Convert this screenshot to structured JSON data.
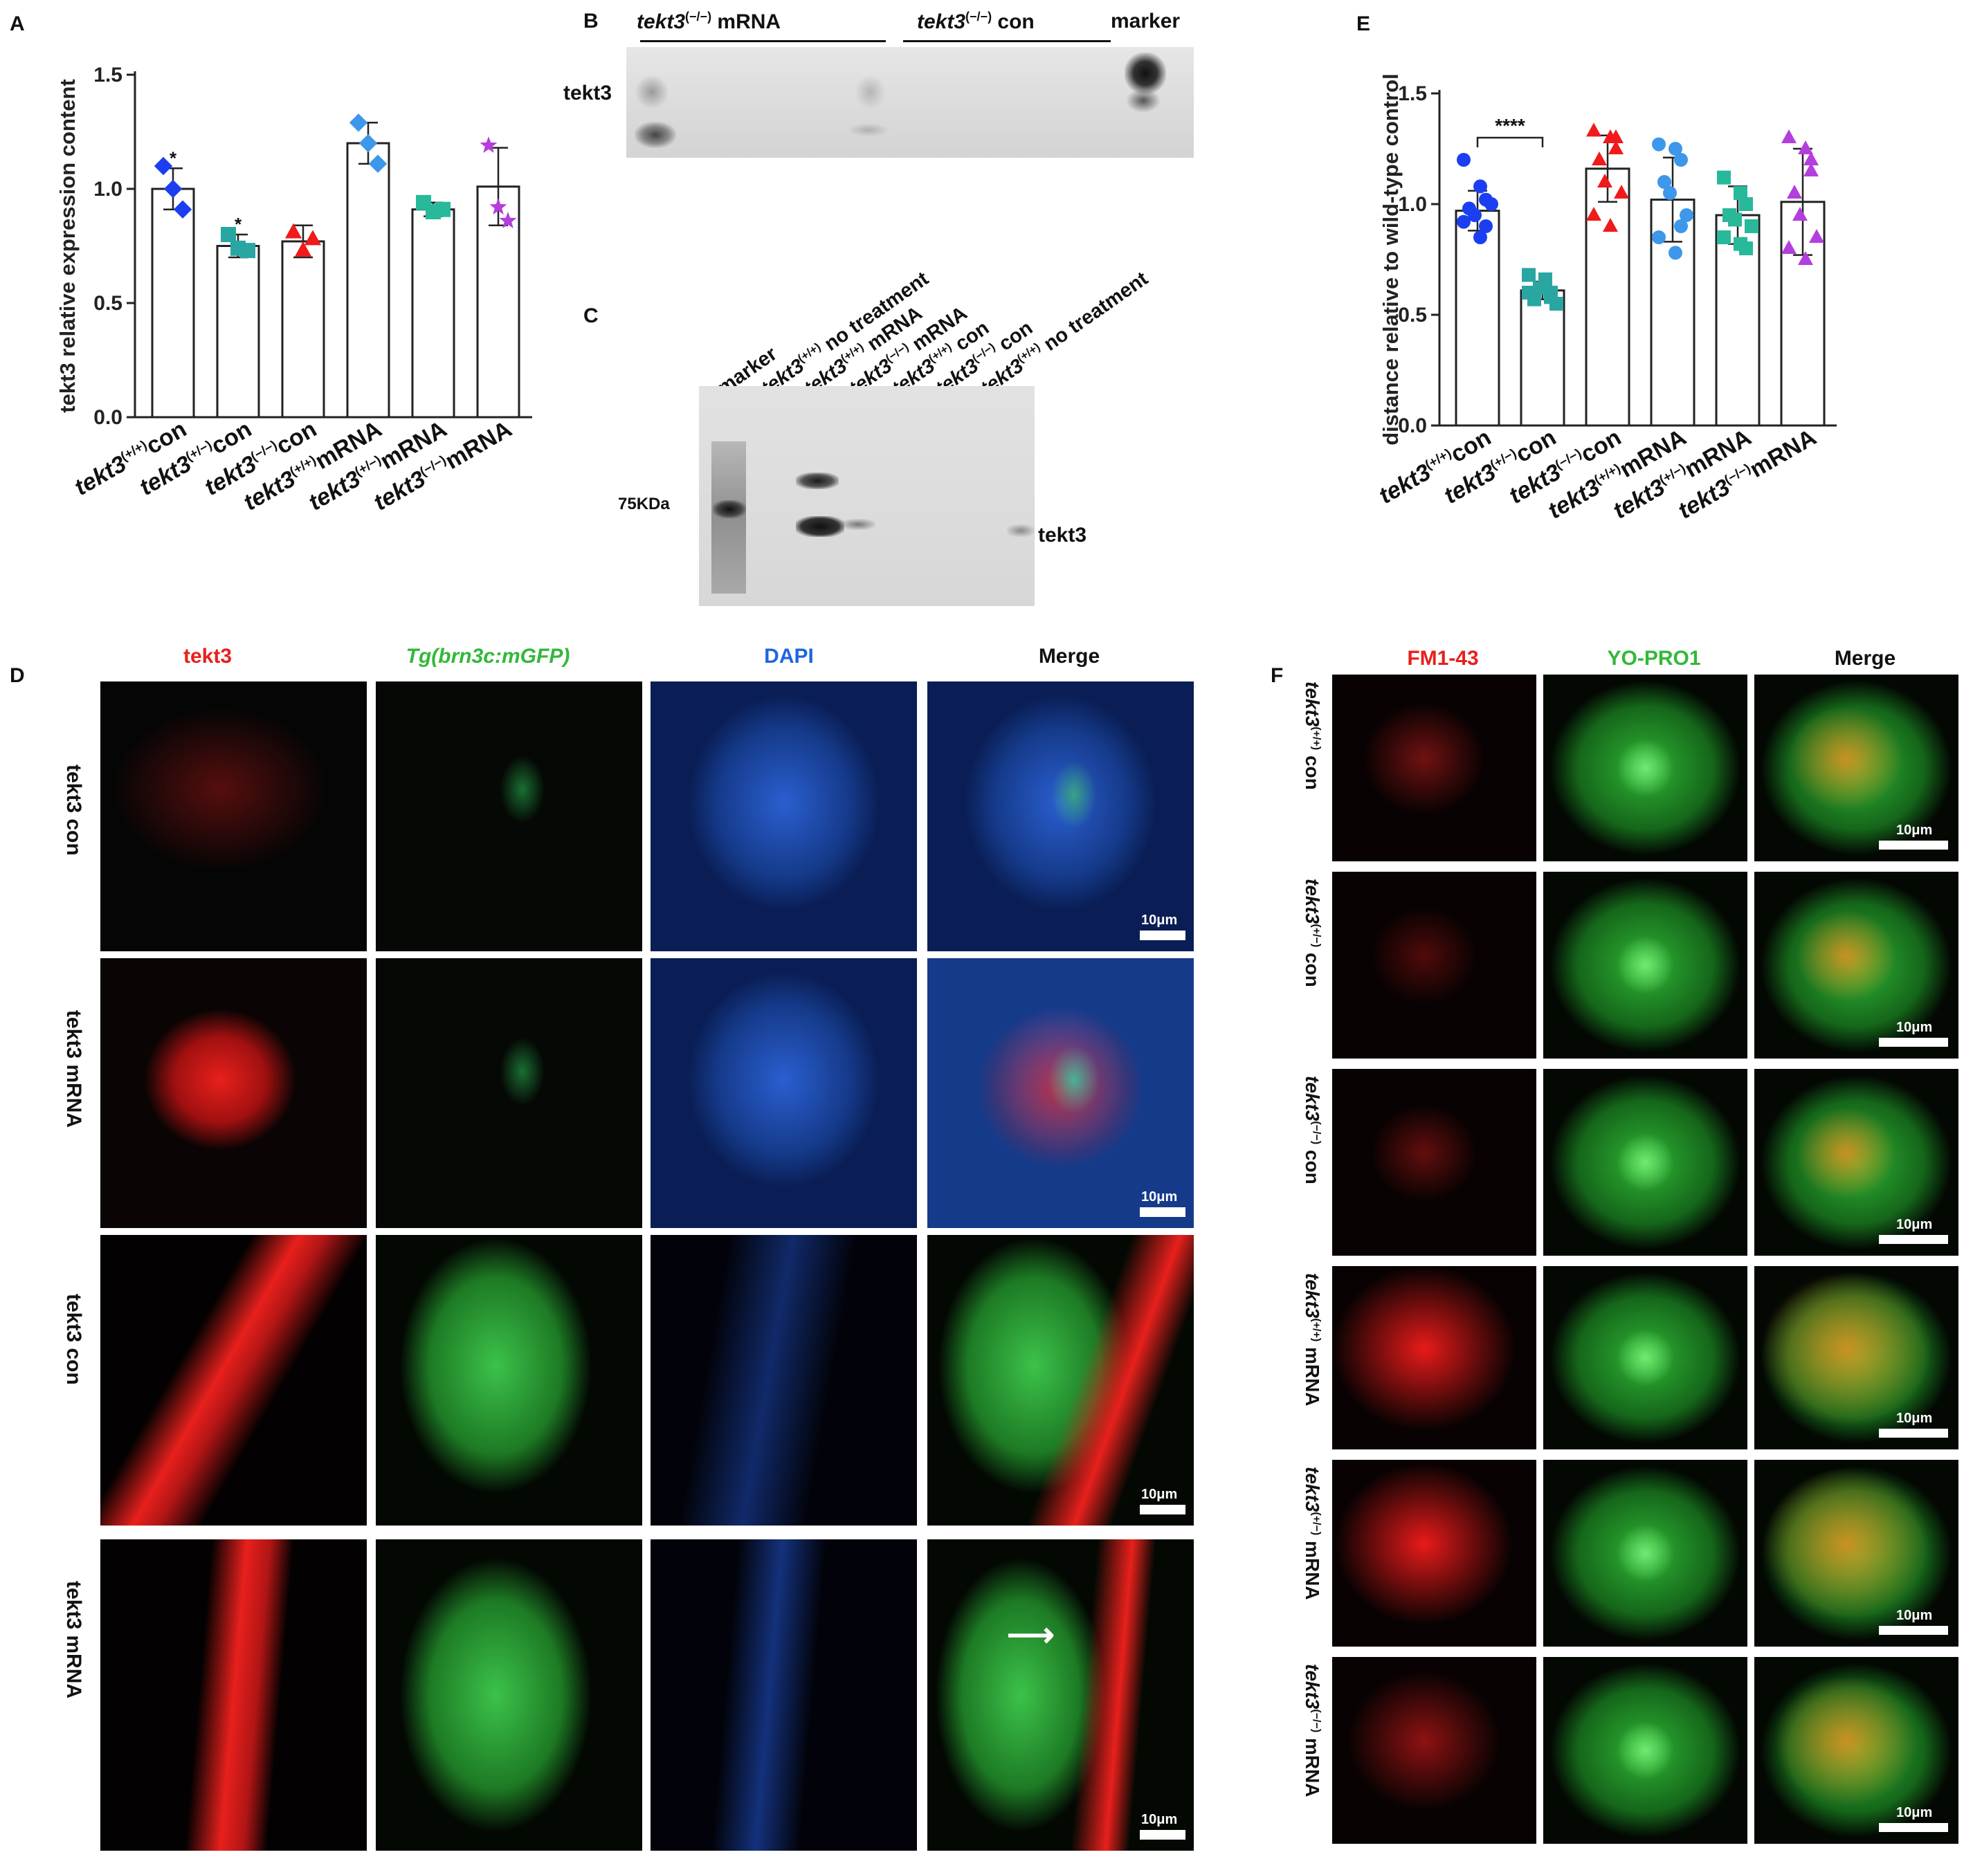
{
  "panel_letters": {
    "a": "A",
    "b": "B",
    "c": "C",
    "d": "D",
    "e": "E",
    "f": "F"
  },
  "chart_data": [
    {
      "type": "bar",
      "panel": "A",
      "ylabel": "tekt3 relative expression content",
      "ylim": [
        0,
        1.5
      ],
      "yticks": [
        "0.0",
        "0.5",
        "1.0",
        "1.5"
      ],
      "categories": [
        {
          "gene": "tekt3",
          "geno": "(+/+)",
          "cond": "con"
        },
        {
          "gene": "tekt3",
          "geno": "(+/−)",
          "cond": "con"
        },
        {
          "gene": "tekt3",
          "geno": "(−/−)",
          "cond": "con"
        },
        {
          "gene": "tekt3",
          "geno": "(+/+)",
          "cond": "mRNA"
        },
        {
          "gene": "tekt3",
          "geno": "(+/−)",
          "cond": "mRNA"
        },
        {
          "gene": "tekt3",
          "geno": "(−/−)",
          "cond": "mRNA"
        }
      ],
      "values": [
        1.0,
        0.75,
        0.77,
        1.2,
        0.91,
        1.01
      ],
      "errors": [
        0.09,
        0.05,
        0.07,
        0.09,
        0.03,
        0.17
      ],
      "points": [
        [
          1.1,
          1.0,
          0.91
        ],
        [
          0.8,
          0.74,
          0.73
        ],
        [
          0.81,
          0.73,
          0.78
        ],
        [
          1.29,
          1.2,
          1.11
        ],
        [
          0.94,
          0.9,
          0.91
        ],
        [
          1.19,
          0.92,
          0.86
        ]
      ],
      "marker_colors": [
        "#1b3ff0",
        "#2aa6a2",
        "#f01a1a",
        "#3d97ea",
        "#28b89a",
        "#b43ddd"
      ],
      "marker_shapes": [
        "diamond",
        "square",
        "triangle",
        "diamond",
        "square",
        "star"
      ],
      "annotations": [
        "*",
        "*",
        "",
        "",
        "",
        ""
      ]
    },
    {
      "type": "bar",
      "panel": "E",
      "ylabel": "distance relative to wild-type control",
      "ylim": [
        0,
        1.5
      ],
      "yticks": [
        "0.0",
        "0.5",
        "1.0",
        "1.5"
      ],
      "categories": [
        {
          "gene": "tekt3",
          "geno": "(+/+)",
          "cond": "con"
        },
        {
          "gene": "tekt3",
          "geno": "(+/−)",
          "cond": "con"
        },
        {
          "gene": "tekt3",
          "geno": "(−/−)",
          "cond": "con"
        },
        {
          "gene": "tekt3",
          "geno": "(+/+)",
          "cond": "mRNA"
        },
        {
          "gene": "tekt3",
          "geno": "(+/−)",
          "cond": "mRNA"
        },
        {
          "gene": "tekt3",
          "geno": "(−/−)",
          "cond": "mRNA"
        }
      ],
      "values": [
        0.97,
        0.61,
        1.16,
        1.02,
        0.95,
        1.01
      ],
      "errors": [
        0.09,
        0.04,
        0.15,
        0.19,
        0.13,
        0.24
      ],
      "points": [
        [
          1.2,
          1.08,
          1.02,
          0.98,
          0.95,
          1.0,
          0.92,
          0.85,
          0.9
        ],
        [
          0.68,
          0.64,
          0.6,
          0.57,
          0.62,
          0.55,
          0.6,
          0.66,
          0.58
        ],
        [
          1.33,
          1.3,
          1.25,
          1.2,
          1.1,
          1.05,
          0.95,
          0.9,
          1.3
        ],
        [
          1.27,
          1.25,
          1.2,
          1.1,
          1.05,
          0.95,
          0.85,
          0.78,
          0.9
        ],
        [
          1.12,
          1.05,
          1.0,
          0.95,
          0.93,
          0.9,
          0.85,
          0.82,
          0.8
        ],
        [
          1.3,
          1.25,
          1.15,
          1.05,
          0.95,
          0.85,
          0.8,
          0.75,
          1.2
        ]
      ],
      "marker_colors": [
        "#1b3ff0",
        "#2aa6a2",
        "#f01a1a",
        "#3d97ea",
        "#28b89a",
        "#b43ddd"
      ],
      "marker_shapes": [
        "circle",
        "square",
        "triangle",
        "circle",
        "square",
        "triangle"
      ],
      "significance": {
        "label": "****",
        "between": [
          0,
          1
        ]
      }
    }
  ],
  "blotB": {
    "group1": {
      "gene": "tekt3",
      "geno": "(−/−)",
      "rest": " mRNA"
    },
    "group2": {
      "gene": "tekt3",
      "geno": "(−/−)",
      "rest": " con"
    },
    "marker": "marker",
    "band_label": "tekt3"
  },
  "blotC": {
    "lanes": [
      {
        "gene": "",
        "geno": "",
        "rest": "marker"
      },
      {
        "gene": "tekt3",
        "geno": "(+/+)",
        "rest": " no treatment"
      },
      {
        "gene": "tekt3",
        "geno": "(+/+)",
        "rest": " mRNA"
      },
      {
        "gene": "tekt3",
        "geno": "(−/−)",
        "rest": " mRNA"
      },
      {
        "gene": "tekt3",
        "geno": "(+/+)",
        "rest": " con"
      },
      {
        "gene": "tekt3",
        "geno": "(−/−)",
        "rest": " con"
      },
      {
        "gene": "tekt3",
        "geno": "(+/+)",
        "rest": " no treatment"
      }
    ],
    "mw": "75KDa",
    "band_label": "tekt3"
  },
  "panelD": {
    "col_tekt3": "tekt3",
    "col_gfp": "Tg(brn3c:mGFP)",
    "col_dapi": "DAPI",
    "col_merge": "Merge",
    "row1": "tekt3 con",
    "row2": "tekt3 mRNA",
    "row3": "tekt3 con",
    "row4": "tekt3 mRNA",
    "scale": "10μm",
    "colors": {
      "red": "#e8201c",
      "green": "#22c52a",
      "blue": "#1f66e0"
    }
  },
  "panelF": {
    "col_fm": "FM1-43",
    "col_yo": "YO-PRO1",
    "col_merge": "Merge",
    "rows": [
      {
        "gene": "tekt3",
        "geno": "(+/+)",
        "cond": " con"
      },
      {
        "gene": "tekt3",
        "geno": "(+/−)",
        "cond": " con"
      },
      {
        "gene": "tekt3",
        "geno": "(−/−)",
        "cond": " con"
      },
      {
        "gene": "tekt3",
        "geno": "(+/+)",
        "cond": " mRNA"
      },
      {
        "gene": "tekt3",
        "geno": "(+/−)",
        "cond": " mRNA"
      },
      {
        "gene": "tekt3",
        "geno": "(−/−)",
        "cond": " mRNA"
      }
    ],
    "scale": "10μm"
  }
}
